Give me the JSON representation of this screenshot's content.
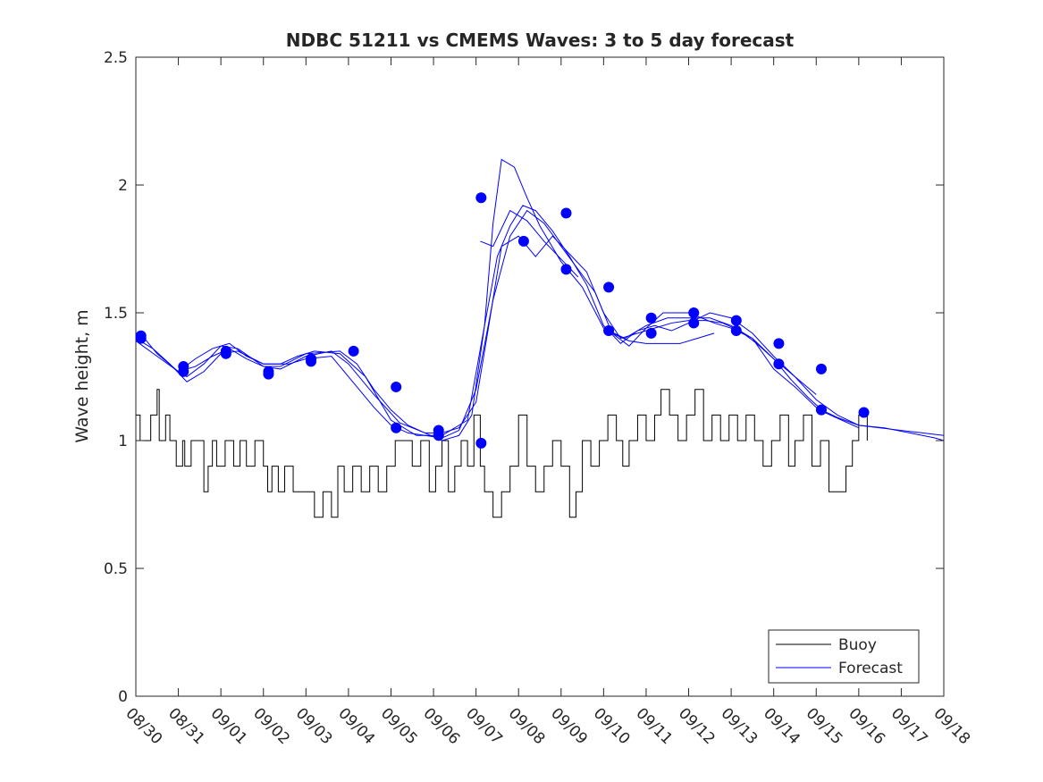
{
  "chart_data": {
    "type": "line",
    "title": "NDBC 51211 vs CMEMS Waves: 3 to 5 day forecast",
    "xlabel": "",
    "ylabel": "Wave height, m",
    "ylim": [
      0,
      2.5
    ],
    "yticks": [
      0,
      0.5,
      1,
      1.5,
      2,
      2.5
    ],
    "ytick_labels": [
      "0",
      "0.5",
      "1",
      "1.5",
      "2",
      "2.5"
    ],
    "xlim_days": [
      0,
      19
    ],
    "xtick_labels": [
      "08/30",
      "08/31",
      "09/01",
      "09/02",
      "09/03",
      "09/04",
      "09/05",
      "09/06",
      "09/07",
      "09/08",
      "09/09",
      "09/10",
      "09/11",
      "09/12",
      "09/13",
      "09/14",
      "09/15",
      "09/16",
      "09/17",
      "09/18"
    ],
    "grid": false,
    "legend_position": "bottom-right",
    "colors": {
      "buoy": "#000000",
      "forecast": "#0000ff",
      "axes": "#262626"
    },
    "series": [
      {
        "name": "Buoy",
        "style": "step",
        "x": [
          0,
          0.1,
          0.35,
          0.5,
          0.55,
          0.7,
          0.8,
          0.95,
          1.1,
          1.15,
          1.3,
          1.6,
          1.7,
          1.8,
          1.9,
          2.1,
          2.3,
          2.45,
          2.6,
          2.8,
          3.0,
          3.1,
          3.2,
          3.35,
          3.5,
          3.7,
          3.9,
          4.2,
          4.4,
          4.6,
          4.75,
          4.9,
          5.1,
          5.3,
          5.5,
          5.7,
          5.9,
          6.1,
          6.3,
          6.5,
          6.7,
          6.9,
          7.05,
          7.2,
          7.35,
          7.5,
          7.65,
          7.8,
          7.95,
          8.1,
          8.2,
          8.4,
          8.6,
          8.8,
          9.0,
          9.2,
          9.4,
          9.6,
          9.8,
          10.0,
          10.2,
          10.35,
          10.5,
          10.7,
          10.9,
          11.1,
          11.3,
          11.45,
          11.6,
          11.8,
          12.0,
          12.2,
          12.35,
          12.55,
          12.75,
          12.95,
          13.15,
          13.35,
          13.55,
          13.75,
          13.95,
          14.15,
          14.35,
          14.55,
          14.75,
          14.95,
          15.15,
          15.35,
          15.5,
          15.7,
          15.9,
          16.1,
          16.3,
          16.5,
          16.7,
          16.85,
          17.0,
          17.2
        ],
        "values": [
          1.1,
          1.0,
          1.1,
          1.2,
          1.0,
          1.1,
          1.0,
          0.9,
          1.0,
          0.9,
          1.0,
          0.8,
          0.9,
          1.0,
          0.9,
          1.0,
          0.9,
          1.0,
          0.9,
          1.0,
          0.9,
          0.8,
          0.9,
          0.8,
          0.9,
          0.8,
          0.8,
          0.7,
          0.8,
          0.7,
          0.9,
          0.8,
          0.9,
          0.8,
          0.9,
          0.8,
          0.9,
          1.0,
          1.0,
          0.9,
          1.0,
          0.8,
          0.9,
          1.0,
          0.8,
          0.9,
          1.0,
          0.9,
          1.1,
          0.9,
          0.8,
          0.7,
          0.8,
          0.9,
          1.1,
          0.9,
          0.8,
          0.9,
          1.0,
          0.9,
          0.7,
          0.8,
          1.0,
          0.9,
          1.0,
          1.1,
          1.0,
          0.9,
          1.0,
          1.1,
          1.0,
          1.1,
          1.2,
          1.1,
          1.0,
          1.1,
          1.2,
          1.0,
          1.1,
          1.0,
          1.1,
          1.0,
          1.1,
          1.0,
          0.9,
          1.0,
          1.1,
          0.9,
          1.0,
          1.1,
          0.9,
          1.0,
          0.8,
          0.8,
          0.9,
          1.0,
          1.1,
          1.0
        ]
      },
      {
        "name": "Forecast",
        "style": "lines",
        "runs": [
          {
            "x": [
              0,
              0.2,
              0.5,
              1.0,
              1.2,
              1.6,
              2.0,
              2.4,
              3.0,
              3.4,
              4.0,
              4.8,
              5.2,
              5.6,
              6.0,
              6.4,
              6.8,
              7.2,
              7.6,
              7.9,
              8.2,
              8.4,
              8.6,
              8.9,
              9.2,
              9.5,
              10.0,
              10.5,
              11.0,
              11.5,
              12.0,
              12.5,
              13.0,
              13.5,
              14.0,
              14.5,
              15.0,
              15.5,
              16.0,
              16.5,
              17.0,
              17.5,
              18.0,
              18.5,
              19.0
            ],
            "values": [
              1.42,
              1.4,
              1.34,
              1.27,
              1.25,
              1.3,
              1.37,
              1.36,
              1.29,
              1.29,
              1.34,
              1.35,
              1.3,
              1.2,
              1.12,
              1.06,
              1.03,
              1.0,
              1.02,
              1.1,
              1.45,
              1.85,
              2.1,
              2.07,
              1.95,
              1.84,
              1.7,
              1.6,
              1.44,
              1.4,
              1.45,
              1.48,
              1.48,
              1.48,
              1.45,
              1.4,
              1.32,
              1.25,
              1.16,
              1.1,
              1.06,
              1.05,
              1.04,
              1.03,
              1.02
            ]
          },
          {
            "x": [
              0,
              0.4,
              0.8,
              1.2,
              1.6,
              2.0,
              2.4,
              3.0,
              3.6,
              4.0,
              4.6,
              5.2,
              5.6,
              6.0,
              6.4,
              6.8,
              7.2,
              7.6,
              8.0,
              8.4,
              8.8,
              9.2,
              9.6,
              10.0,
              10.4,
              10.8,
              11.2,
              11.6,
              12.0,
              12.4,
              13.0,
              13.6,
              14.0,
              14.5,
              15.0,
              15.5,
              16.0,
              16.5,
              17.0,
              17.6,
              18.2,
              18.8,
              19.0
            ],
            "values": [
              1.4,
              1.36,
              1.3,
              1.23,
              1.27,
              1.34,
              1.35,
              1.3,
              1.3,
              1.32,
              1.33,
              1.21,
              1.13,
              1.06,
              1.03,
              1.02,
              1.01,
              1.04,
              1.2,
              1.55,
              1.8,
              1.9,
              1.85,
              1.76,
              1.67,
              1.58,
              1.42,
              1.37,
              1.44,
              1.5,
              1.5,
              1.46,
              1.44,
              1.4,
              1.28,
              1.21,
              1.13,
              1.09,
              1.06,
              1.05,
              1.03,
              1.01,
              1.0
            ]
          },
          {
            "x": [
              0,
              0.5,
              1.0,
              1.4,
              1.8,
              2.2,
              2.6,
              3.0,
              3.4,
              3.8,
              4.2,
              4.8,
              5.4,
              6.0,
              6.6,
              7.2,
              7.8,
              8.2,
              8.5,
              8.8,
              9.1,
              9.4,
              9.8,
              10.2,
              10.6,
              11.0,
              11.4,
              11.8,
              12.2,
              12.6,
              13.0,
              13.5,
              14.0,
              14.5,
              15.0,
              15.5,
              16.0
            ],
            "values": [
              1.39,
              1.33,
              1.27,
              1.32,
              1.36,
              1.38,
              1.33,
              1.3,
              1.3,
              1.33,
              1.35,
              1.34,
              1.25,
              1.08,
              1.02,
              1.02,
              1.08,
              1.45,
              1.72,
              1.84,
              1.92,
              1.9,
              1.82,
              1.72,
              1.61,
              1.45,
              1.38,
              1.43,
              1.45,
              1.43,
              1.46,
              1.5,
              1.48,
              1.42,
              1.33,
              1.25,
              1.18
            ]
          },
          {
            "x": [
              1.0,
              1.4,
              1.8,
              2.2,
              2.6,
              3.0,
              3.4,
              4.0,
              4.6,
              5.0,
              5.6,
              6.2,
              6.8,
              7.2,
              7.6,
              8.0,
              8.3,
              8.6,
              9.0,
              9.4,
              9.8,
              10.2,
              10.6,
              11.0,
              11.4,
              11.8,
              12.2,
              12.6,
              13.0,
              13.4,
              13.8,
              14.2,
              14.6,
              15.0,
              15.4,
              15.8,
              16.2,
              16.6,
              17.0
            ],
            "values": [
              1.27,
              1.29,
              1.33,
              1.36,
              1.32,
              1.29,
              1.28,
              1.33,
              1.35,
              1.3,
              1.18,
              1.07,
              1.03,
              1.03,
              1.05,
              1.15,
              1.45,
              1.76,
              1.8,
              1.72,
              1.8,
              1.73,
              1.66,
              1.5,
              1.4,
              1.42,
              1.44,
              1.46,
              1.47,
              1.47,
              1.46,
              1.43,
              1.38,
              1.32,
              1.24,
              1.17,
              1.11,
              1.08,
              1.05
            ]
          },
          {
            "x": [
              8.1,
              8.4,
              8.8,
              9.2,
              9.6,
              10.0,
              10.4
            ],
            "values": [
              1.78,
              1.76,
              1.9,
              1.86,
              1.78,
              1.71,
              1.64
            ]
          },
          {
            "x": [
              11.2,
              11.6,
              12.0,
              12.4,
              12.8,
              13.2,
              13.6
            ],
            "values": [
              1.42,
              1.39,
              1.38,
              1.38,
              1.38,
              1.4,
              1.42
            ]
          }
        ],
        "markers": {
          "x": [
            0.12,
            0.12,
            1.12,
            1.12,
            2.12,
            2.12,
            3.12,
            3.12,
            4.12,
            4.12,
            5.12,
            6.12,
            6.12,
            7.12,
            7.12,
            8.12,
            8.12,
            9.12,
            10.12,
            10.12,
            11.12,
            11.12,
            12.12,
            12.12,
            13.12,
            13.12,
            14.12,
            14.12,
            15.12,
            15.12,
            16.12,
            16.12,
            17.12
          ],
          "values": [
            1.41,
            1.4,
            1.29,
            1.27,
            1.35,
            1.34,
            1.27,
            1.26,
            1.32,
            1.31,
            1.35,
            1.21,
            1.05,
            1.02,
            1.04,
            0.99,
            1.95,
            1.78,
            1.89,
            1.67,
            1.6,
            1.43,
            1.42,
            1.48,
            1.46,
            1.5,
            1.47,
            1.43,
            1.38,
            1.3,
            1.28,
            1.12,
            1.11
          ]
        }
      }
    ],
    "legend_entries": [
      "Buoy",
      "Forecast"
    ]
  }
}
